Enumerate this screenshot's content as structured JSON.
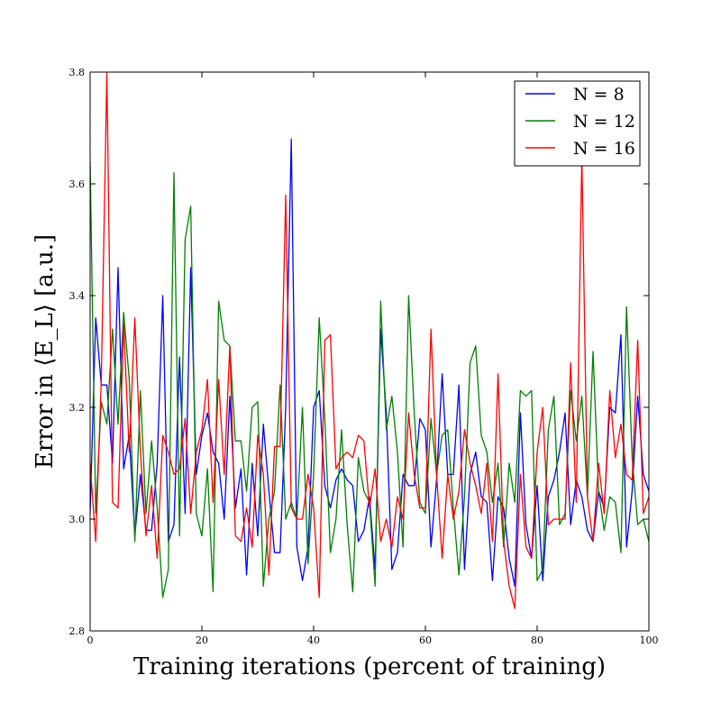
{
  "chart_data": {
    "type": "line",
    "title": "",
    "xlabel": "Training iterations (percent of training)",
    "ylabel": "Error in ⟨E_L⟩ [a.u.]",
    "xlim": [
      0,
      100
    ],
    "ylim": [
      2.8,
      3.8
    ],
    "x_ticks": [
      "0",
      "20",
      "40",
      "60",
      "80",
      "100"
    ],
    "y_ticks": [
      "2.8",
      "3.0",
      "3.2",
      "3.4",
      "3.6",
      "3.8"
    ],
    "grid": false,
    "legend_position": "top-right",
    "x": [
      0,
      1,
      2,
      3,
      4,
      5,
      6,
      7,
      8,
      9,
      10,
      11,
      12,
      13,
      14,
      15,
      16,
      17,
      18,
      19,
      20,
      21,
      22,
      23,
      24,
      25,
      26,
      27,
      28,
      29,
      30,
      31,
      32,
      33,
      34,
      35,
      36,
      37,
      38,
      39,
      40,
      41,
      42,
      43,
      44,
      45,
      46,
      47,
      48,
      49,
      50,
      51,
      52,
      53,
      54,
      55,
      56,
      57,
      58,
      59,
      60,
      61,
      62,
      63,
      64,
      65,
      66,
      67,
      68,
      69,
      70,
      71,
      72,
      73,
      74,
      75,
      76,
      77,
      78,
      79,
      80,
      81,
      82,
      83,
      84,
      85,
      86,
      87,
      88,
      89,
      90,
      91,
      92,
      93,
      94,
      95,
      96,
      97,
      98,
      99,
      100
    ],
    "series": [
      {
        "name": "N = 8",
        "color": "#0000ff",
        "values": [
          3.01,
          3.36,
          3.24,
          3.24,
          3.1,
          3.45,
          3.09,
          3.15,
          2.97,
          3.08,
          2.98,
          2.98,
          3.1,
          3.4,
          2.96,
          2.99,
          3.29,
          3.01,
          3.45,
          3.08,
          3.15,
          3.19,
          3.12,
          3.1,
          3.0,
          3.22,
          3.02,
          3.09,
          2.9,
          3.1,
          2.97,
          3.17,
          3.05,
          2.94,
          2.94,
          3.2,
          3.68,
          2.95,
          2.89,
          2.95,
          3.2,
          3.23,
          3.06,
          3.02,
          3.07,
          3.09,
          3.07,
          3.06,
          2.96,
          2.98,
          3.04,
          2.91,
          3.34,
          3.19,
          2.91,
          2.94,
          3.08,
          3.06,
          3.06,
          3.18,
          3.16,
          2.95,
          3.07,
          3.26,
          3.08,
          3.08,
          3.24,
          2.91,
          3.08,
          3.12,
          3.04,
          3.03,
          2.89,
          3.04,
          3.02,
          2.93,
          2.88,
          3.19,
          2.99,
          2.93,
          3.06,
          2.89,
          3.04,
          3.07,
          3.12,
          3.19,
          2.99,
          3.07,
          3.04,
          2.98,
          2.96,
          3.05,
          3.02,
          3.2,
          3.19,
          3.33,
          2.95,
          3.05,
          3.22,
          3.08,
          3.05
        ]
      },
      {
        "name": "N = 12",
        "color": "#008000",
        "values": [
          3.64,
          3.01,
          3.21,
          3.17,
          3.34,
          3.17,
          3.37,
          3.25,
          2.96,
          3.23,
          3.01,
          3.14,
          3.02,
          2.86,
          2.91,
          3.62,
          2.97,
          3.5,
          3.56,
          3.01,
          2.97,
          3.09,
          2.87,
          3.39,
          3.32,
          3.31,
          3.14,
          3.14,
          3.05,
          3.2,
          3.21,
          2.88,
          3.0,
          3.05,
          3.24,
          3.0,
          3.03,
          3.0,
          3.2,
          2.92,
          3.08,
          3.36,
          3.18,
          2.94,
          3.0,
          3.16,
          2.99,
          2.87,
          3.11,
          3.05,
          3.03,
          2.88,
          3.39,
          3.16,
          3.22,
          3.12,
          2.95,
          3.4,
          3.19,
          3.03,
          3.01,
          3.18,
          3.08,
          3.15,
          3.16,
          3.02,
          2.9,
          3.04,
          3.28,
          3.31,
          3.15,
          3.12,
          3.03,
          3.1,
          2.95,
          3.1,
          3.03,
          3.23,
          3.22,
          3.23,
          2.89,
          2.91,
          3.16,
          3.22,
          2.99,
          3.01,
          3.23,
          3.14,
          3.22,
          3.04,
          3.3,
          3.05,
          2.98,
          3.04,
          3.03,
          2.94,
          3.38,
          3.11,
          2.99,
          3.0,
          2.96
        ]
      },
      {
        "name": "N = 16",
        "color": "#ff0000",
        "values": [
          3.1,
          2.96,
          3.25,
          3.8,
          3.03,
          3.02,
          3.35,
          3.12,
          3.36,
          3.12,
          2.97,
          3.06,
          2.93,
          3.15,
          3.12,
          3.08,
          3.09,
          3.18,
          3.01,
          3.12,
          3.16,
          3.25,
          3.03,
          3.25,
          3.08,
          3.31,
          2.97,
          2.96,
          3.02,
          2.95,
          3.15,
          3.08,
          2.9,
          3.13,
          3.13,
          3.58,
          3.02,
          3.0,
          3.0,
          3.08,
          3.02,
          2.86,
          3.32,
          3.33,
          3.09,
          3.11,
          3.12,
          3.11,
          3.15,
          3.14,
          3.02,
          3.09,
          2.96,
          3.0,
          2.95,
          3.04,
          3.0,
          3.19,
          3.08,
          3.02,
          3.02,
          3.34,
          3.08,
          2.93,
          3.08,
          3.0,
          3.05,
          3.16,
          3.1,
          3.06,
          3.01,
          3.1,
          2.96,
          3.26,
          2.96,
          2.88,
          2.84,
          3.08,
          2.95,
          2.93,
          3.12,
          3.2,
          2.99,
          3.0,
          3.0,
          3.0,
          3.28,
          3.03,
          3.65,
          3.04,
          2.96,
          3.1,
          3.01,
          3.23,
          3.11,
          3.17,
          3.08,
          3.07,
          3.32,
          3.01,
          3.04
        ]
      }
    ]
  }
}
